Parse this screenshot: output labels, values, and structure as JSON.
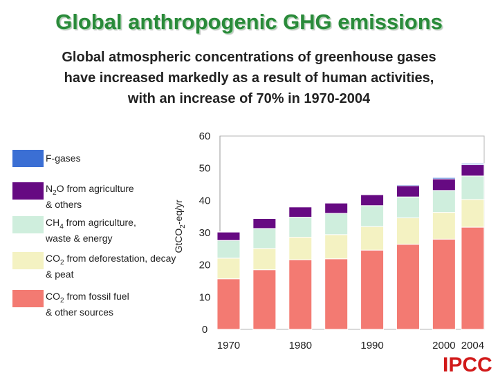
{
  "slide": {
    "title": "Global anthropogenic GHG emissions",
    "subtitle_lines": [
      "Global atmospheric concentrations of greenhouse gases",
      "have increased markedly as a result of human activities,",
      "with an increase of 70% in 1970-2004"
    ],
    "brand": "IPCC"
  },
  "legend": [
    {
      "key": "fgases",
      "color": "#3b6fd4",
      "lines": [
        {
          "pre": "F-gases"
        }
      ]
    },
    {
      "key": "n2o",
      "color": "#660a82",
      "lines": [
        {
          "pre": "N",
          "sub": "2",
          "post": "O from agriculture"
        },
        {
          "pre": "& others"
        }
      ]
    },
    {
      "key": "ch4",
      "color": "#cfeedd",
      "lines": [
        {
          "pre": "CH",
          "sub": "4",
          "post": " from agriculture,"
        },
        {
          "pre": "waste & energy"
        }
      ]
    },
    {
      "key": "co2_deforestation",
      "color": "#f4f2c2",
      "lines": [
        {
          "pre": "CO",
          "sub": "2",
          "post": " from deforestation, decay"
        },
        {
          "pre": "& peat"
        }
      ]
    },
    {
      "key": "co2_fossil",
      "color": "#f37a72",
      "lines": [
        {
          "pre": "CO",
          "sub": "2",
          "post": " from fossil fuel"
        },
        {
          "pre": "& other sources"
        }
      ]
    }
  ],
  "chart_data": {
    "type": "bar",
    "stacked": true,
    "ylabel": {
      "pre": "GtCO",
      "sub": "2",
      "post": "-eq/yr"
    },
    "ylim": [
      0,
      60
    ],
    "yticks": [
      0,
      10,
      20,
      30,
      40,
      50,
      60
    ],
    "x": [
      1970,
      1975,
      1980,
      1985,
      1990,
      1995,
      2000,
      2004
    ],
    "xtick_labels": [
      {
        "text": "1970",
        "x": 1970
      },
      {
        "text": "1980",
        "x": 1980
      },
      {
        "text": "1990",
        "x": 1990
      },
      {
        "text": "2000",
        "x": 2000
      },
      {
        "text": "2004",
        "x": 2004
      }
    ],
    "series": [
      {
        "name": "CO2 from fossil fuel & other sources",
        "color": "#f37a72",
        "values": [
          15.7,
          18.5,
          21.6,
          21.9,
          24.6,
          26.4,
          28.0,
          31.7
        ]
      },
      {
        "name": "CO2 from deforestation, decay & peat",
        "color": "#f4f2c2",
        "values": [
          6.4,
          6.6,
          7.0,
          7.5,
          7.3,
          8.2,
          8.3,
          8.6
        ]
      },
      {
        "name": "CH4 from agriculture, waste & energy",
        "color": "#cfeedd",
        "values": [
          5.5,
          6.2,
          6.2,
          6.6,
          6.5,
          6.5,
          6.8,
          7.3
        ]
      },
      {
        "name": "N2O from agriculture & others",
        "color": "#660a82",
        "values": [
          2.6,
          3.1,
          3.2,
          3.2,
          3.4,
          3.5,
          3.6,
          3.5
        ]
      },
      {
        "name": "F-gases",
        "color": "#3b6fd4",
        "values": [
          0.1,
          0.2,
          0.2,
          0.2,
          0.2,
          0.3,
          0.4,
          0.4
        ]
      }
    ]
  }
}
